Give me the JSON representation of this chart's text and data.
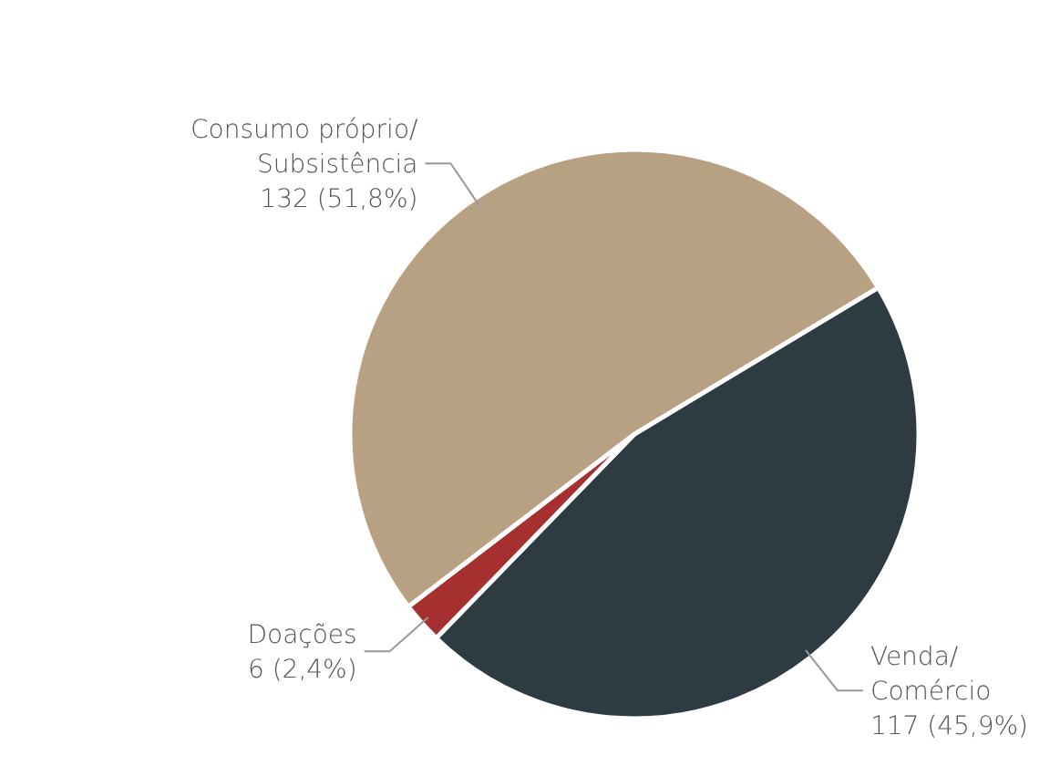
{
  "chart_data": {
    "type": "pie",
    "categories": [
      "Venda/Comércio",
      "Doações",
      "Consumo próprio/Subsistência"
    ],
    "values": [
      117,
      6,
      132
    ],
    "colors": [
      "#2e3b42",
      "#a5302f",
      "#b8a082"
    ],
    "value_labels": [
      "117 (45,9%)",
      "6 (2,4%)",
      "132 (51,8%)"
    ]
  }
}
